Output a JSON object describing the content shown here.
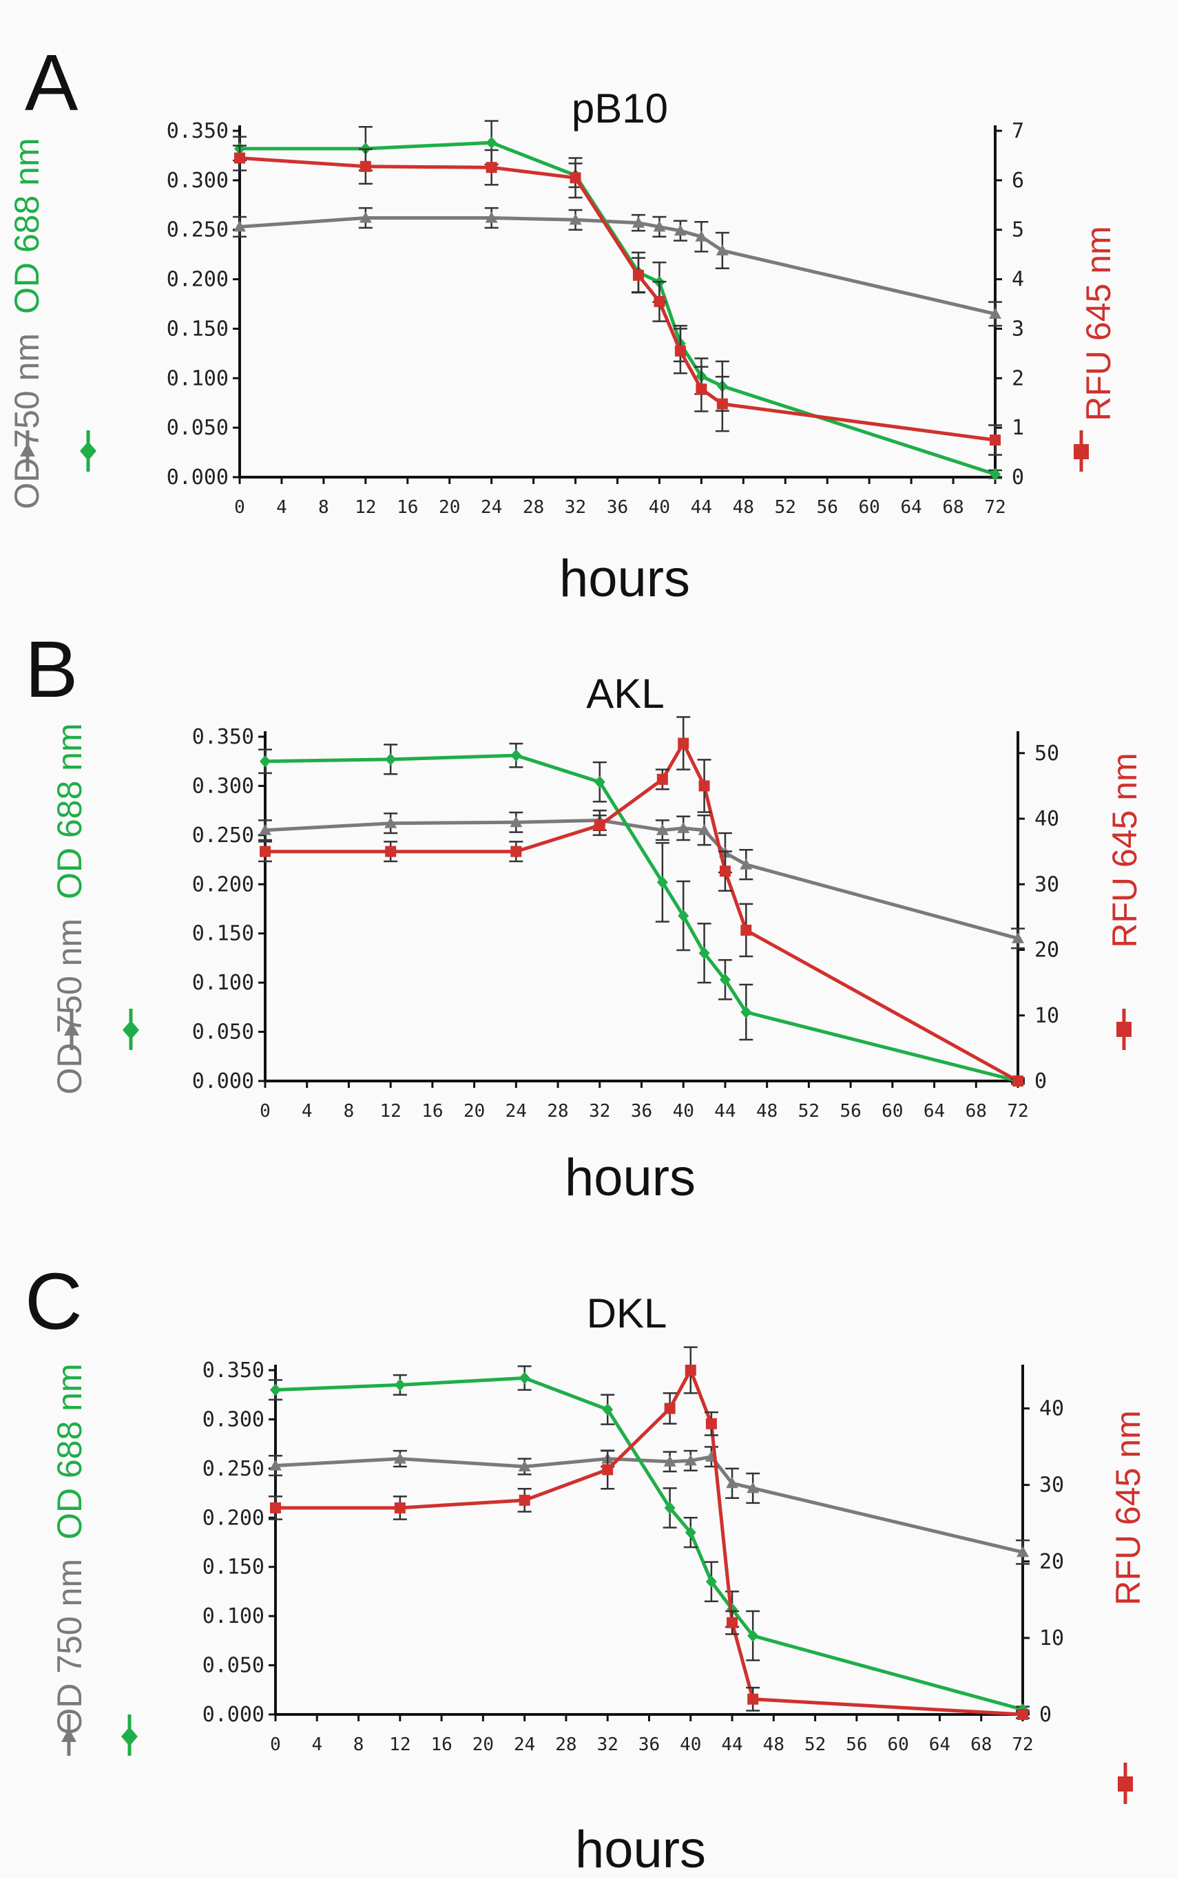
{
  "figure": {
    "background": "#fafafa"
  },
  "series_styles": [
    {
      "key": "od750",
      "name": "OD 750 nm",
      "color": "#7a7a7a",
      "marker": "triangle",
      "axis": "left"
    },
    {
      "key": "od688",
      "name": "OD 688 nm",
      "color": "#1fae48",
      "marker": "diamond",
      "axis": "left"
    },
    {
      "key": "rfu645",
      "name": "RFU 645 nm",
      "color": "#d0312d",
      "marker": "square",
      "axis": "right"
    }
  ],
  "chart_data": [
    {
      "panel": "A",
      "type": "line",
      "title": "pB10",
      "xlabel": "hours",
      "ylabel_left": [
        "OD 750 nm",
        "OD 688 nm"
      ],
      "ylabel_right": "RFU 645 nm",
      "xlim": [
        0,
        72
      ],
      "x_ticks": [
        0,
        4,
        8,
        12,
        16,
        20,
        24,
        28,
        32,
        36,
        40,
        44,
        48,
        52,
        56,
        60,
        64,
        68,
        72
      ],
      "ylim_left": [
        0,
        0.35
      ],
      "y_ticks_left": [
        "0.000",
        "0.050",
        "0.100",
        "0.150",
        "0.200",
        "0.250",
        "0.300",
        "0.350"
      ],
      "ylim_right": [
        0,
        7
      ],
      "y_ticks_right": [
        "0",
        "1",
        "2",
        "3",
        "4",
        "5",
        "6",
        "7"
      ],
      "series": [
        {
          "name": "OD 750 nm",
          "axis": "left",
          "x": [
            0,
            12,
            24,
            32,
            38,
            40,
            42,
            44,
            46,
            72
          ],
          "y": [
            0.253,
            0.262,
            0.262,
            0.26,
            0.257,
            0.253,
            0.249,
            0.243,
            0.229,
            0.165
          ],
          "err": [
            0.01,
            0.01,
            0.01,
            0.01,
            0.008,
            0.01,
            0.01,
            0.015,
            0.018,
            0.012
          ]
        },
        {
          "name": "OD 688 nm",
          "axis": "left",
          "x": [
            0,
            12,
            24,
            32,
            38,
            40,
            42,
            44,
            46,
            72
          ],
          "y": [
            0.332,
            0.332,
            0.338,
            0.305,
            0.207,
            0.197,
            0.135,
            0.102,
            0.092,
            0.003
          ],
          "err": [
            0.012,
            0.022,
            0.022,
            0.012,
            0.02,
            0.02,
            0.018,
            0.018,
            0.025,
            0.004
          ]
        },
        {
          "name": "RFU 645 nm",
          "axis": "right",
          "x": [
            0,
            12,
            24,
            32,
            38,
            40,
            42,
            44,
            46,
            72
          ],
          "y": [
            6.45,
            6.28,
            6.26,
            6.05,
            4.08,
            3.55,
            2.55,
            1.78,
            1.48,
            0.75
          ],
          "err": [
            0.25,
            0.35,
            0.35,
            0.4,
            0.35,
            0.4,
            0.45,
            0.45,
            0.55,
            0.3
          ]
        }
      ]
    },
    {
      "panel": "B",
      "type": "line",
      "title": "AKL",
      "xlabel": "hours",
      "ylabel_left": [
        "OD 750 nm",
        "OD 688 nm"
      ],
      "ylabel_right": "RFU 645 nm",
      "xlim": [
        0,
        72
      ],
      "x_ticks": [
        0,
        4,
        8,
        12,
        16,
        20,
        24,
        28,
        32,
        36,
        40,
        44,
        48,
        52,
        56,
        60,
        64,
        68,
        72
      ],
      "ylim_left": [
        0,
        0.35
      ],
      "y_ticks_left": [
        "0.000",
        "0.050",
        "0.100",
        "0.150",
        "0.200",
        "0.250",
        "0.300",
        "0.350"
      ],
      "ylim_right": [
        0,
        52.5
      ],
      "y_ticks_right": [
        "0",
        "10",
        "20",
        "30",
        "40",
        "50"
      ],
      "series": [
        {
          "name": "OD 750 nm",
          "axis": "left",
          "x": [
            0,
            12,
            24,
            32,
            38,
            40,
            42,
            44,
            46,
            72
          ],
          "y": [
            0.255,
            0.262,
            0.263,
            0.265,
            0.255,
            0.257,
            0.255,
            0.232,
            0.22,
            0.145
          ],
          "err": [
            0.01,
            0.01,
            0.01,
            0.01,
            0.01,
            0.012,
            0.015,
            0.02,
            0.015,
            0.01
          ]
        },
        {
          "name": "OD 688 nm",
          "axis": "left",
          "x": [
            0,
            12,
            24,
            32,
            38,
            40,
            42,
            44,
            46,
            72
          ],
          "y": [
            0.325,
            0.327,
            0.331,
            0.304,
            0.202,
            0.168,
            0.13,
            0.103,
            0.07,
            0.0
          ],
          "err": [
            0.012,
            0.015,
            0.012,
            0.02,
            0.04,
            0.035,
            0.03,
            0.02,
            0.028,
            0.003
          ]
        },
        {
          "name": "RFU 645 nm",
          "axis": "right",
          "x": [
            0,
            12,
            24,
            32,
            38,
            40,
            42,
            44,
            46,
            72
          ],
          "y": [
            35,
            35,
            35,
            39,
            46,
            51.5,
            45,
            32,
            23,
            0
          ],
          "err": [
            1.5,
            1.5,
            1.5,
            1.5,
            1.5,
            4,
            4,
            3,
            4,
            0.3
          ]
        }
      ]
    },
    {
      "panel": "C",
      "type": "line",
      "title": "DKL",
      "xlabel": "hours",
      "ylabel_left": [
        "OD 750 nm",
        "OD 688 nm"
      ],
      "ylabel_right": "RFU 645 nm",
      "xlim": [
        0,
        72
      ],
      "x_ticks": [
        0,
        4,
        8,
        12,
        16,
        20,
        24,
        28,
        32,
        36,
        40,
        44,
        48,
        52,
        56,
        60,
        64,
        68,
        72
      ],
      "ylim_left": [
        0,
        0.35
      ],
      "y_ticks_left": [
        "0.000",
        "0.050",
        "0.100",
        "0.150",
        "0.200",
        "0.250",
        "0.300",
        "0.350"
      ],
      "ylim_right": [
        0,
        45
      ],
      "y_ticks_right": [
        "0",
        "10",
        "20",
        "30",
        "40"
      ],
      "series": [
        {
          "name": "OD 750 nm",
          "axis": "left",
          "x": [
            0,
            12,
            24,
            32,
            38,
            40,
            42,
            44,
            46,
            72
          ],
          "y": [
            0.253,
            0.26,
            0.252,
            0.26,
            0.257,
            0.258,
            0.262,
            0.235,
            0.23,
            0.165
          ],
          "err": [
            0.01,
            0.008,
            0.008,
            0.008,
            0.01,
            0.01,
            0.01,
            0.015,
            0.015,
            0.012
          ]
        },
        {
          "name": "OD 688 nm",
          "axis": "left",
          "x": [
            0,
            12,
            24,
            32,
            38,
            40,
            42,
            44,
            46,
            72
          ],
          "y": [
            0.33,
            0.335,
            0.342,
            0.31,
            0.21,
            0.185,
            0.135,
            0.107,
            0.08,
            0.005
          ],
          "err": [
            0.01,
            0.01,
            0.012,
            0.015,
            0.02,
            0.015,
            0.02,
            0.018,
            0.025,
            0.003
          ]
        },
        {
          "name": "RFU 645 nm",
          "axis": "right",
          "x": [
            0,
            12,
            24,
            32,
            38,
            40,
            42,
            44,
            46,
            72
          ],
          "y": [
            27,
            27,
            28,
            32,
            40,
            45,
            38,
            12,
            2,
            0
          ],
          "err": [
            1.5,
            1.5,
            1.5,
            2.5,
            2,
            3,
            1.5,
            1.5,
            1.5,
            0.5
          ]
        }
      ]
    }
  ]
}
